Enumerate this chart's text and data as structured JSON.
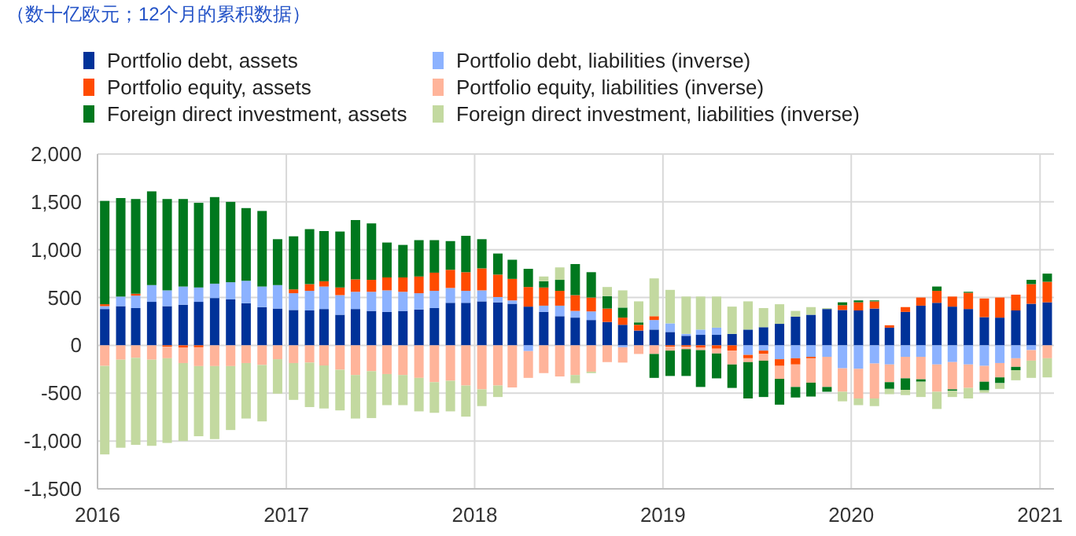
{
  "chart_data": {
    "type": "bar",
    "subtitle": "（数十亿欧元；12个月的累积数据）",
    "stacked": true,
    "grid": true,
    "legend": "top",
    "x": [
      "2016-01-15",
      "2016-02-15",
      "2016-03-15",
      "2016-04-15",
      "2016-05-15",
      "2016-06-15",
      "2016-07-15",
      "2016-08-15",
      "2016-09-15",
      "2016-10-15",
      "2016-11-15",
      "2016-12-15",
      "2017-01-15",
      "2017-02-15",
      "2017-03-15",
      "2017-04-15",
      "2017-05-15",
      "2017-06-15",
      "2017-07-15",
      "2017-08-15",
      "2017-09-15",
      "2017-10-15",
      "2017-11-15",
      "2017-12-15",
      "2018-01-15",
      "2018-02-15",
      "2018-03-15",
      "2018-04-15",
      "2018-05-15",
      "2018-06-15",
      "2018-07-15",
      "2018-08-15",
      "2018-09-15",
      "2018-10-15",
      "2018-11-15",
      "2018-12-15",
      "2019-01-15",
      "2019-02-15",
      "2019-03-15",
      "2019-04-15",
      "2019-05-15",
      "2019-06-15",
      "2019-07-15",
      "2019-08-15",
      "2019-09-15",
      "2019-10-15",
      "2019-11-15",
      "2019-12-15",
      "2020-01-15",
      "2020-02-15",
      "2020-03-15",
      "2020-04-15",
      "2020-05-15",
      "2020-06-15",
      "2020-07-15",
      "2020-08-15",
      "2020-09-15",
      "2020-10-15",
      "2020-11-15",
      "2020-12-15",
      "2021-01-15"
    ],
    "xlim": [
      "2016-01-01",
      "2021-01-28"
    ],
    "xticks": [
      "2016",
      "2017",
      "2018",
      "2019",
      "2020",
      "2021"
    ],
    "ylim": [
      -1500,
      2000
    ],
    "yticks": [
      {
        "value": -1500,
        "label": "-1,500"
      },
      {
        "value": -1000,
        "label": "-1,000"
      },
      -500,
      0,
      500,
      {
        "value": 1000,
        "label": "1,000"
      },
      {
        "value": 1500,
        "label": "1,500"
      },
      {
        "value": 2000,
        "label": "2,000"
      }
    ],
    "series": [
      {
        "name": "Portfolio debt, assets",
        "color": "#003299",
        "values": [
          380,
          410,
          390,
          455,
          410,
          425,
          455,
          495,
          480,
          440,
          400,
          385,
          370,
          365,
          380,
          320,
          380,
          360,
          350,
          360,
          375,
          390,
          445,
          445,
          460,
          450,
          435,
          405,
          350,
          305,
          290,
          265,
          245,
          215,
          155,
          165,
          140,
          100,
          110,
          110,
          120,
          165,
          190,
          225,
          300,
          320,
          380,
          370,
          365,
          385,
          185,
          350,
          415,
          445,
          405,
          380,
          295,
          290,
          365,
          435,
          450
        ]
      },
      {
        "name": "Portfolio debt, liabilities (inverse)",
        "color": "#8cb2ff",
        "values": [
          30,
          100,
          130,
          175,
          165,
          190,
          150,
          150,
          180,
          235,
          215,
          245,
          175,
          205,
          235,
          205,
          180,
          200,
          225,
          200,
          170,
          180,
          155,
          125,
          115,
          55,
          35,
          -60,
          65,
          110,
          70,
          90,
          null,
          -20,
          null,
          100,
          90,
          20,
          55,
          75,
          null,
          -100,
          -55,
          -145,
          -135,
          -120,
          -120,
          -240,
          -245,
          -190,
          -200,
          -120,
          -120,
          -200,
          -175,
          -200,
          -215,
          -185,
          -135,
          -50,
          null
        ]
      },
      {
        "name": "Portfolio equity, assets",
        "color": "#ff4b00",
        "values": [
          20,
          null,
          20,
          null,
          -15,
          -25,
          -20,
          null,
          null,
          null,
          null,
          null,
          40,
          70,
          55,
          80,
          130,
          125,
          135,
          150,
          175,
          190,
          190,
          195,
          230,
          235,
          225,
          205,
          190,
          155,
          165,
          145,
          140,
          75,
          60,
          40,
          -15,
          -15,
          -25,
          -35,
          -55,
          -35,
          -35,
          -70,
          -65,
          -15,
          null,
          50,
          85,
          75,
          25,
          50,
          85,
          125,
          105,
          170,
          195,
          210,
          165,
          205,
          215
        ]
      },
      {
        "name": "Portfolio equity, liabilities (inverse)",
        "color": "#ffb49a",
        "values": [
          -215,
          -150,
          -130,
          -150,
          -120,
          -160,
          -197,
          -217,
          -217,
          -185,
          -205,
          -145,
          -185,
          -180,
          -210,
          -255,
          -310,
          -270,
          -300,
          -310,
          -340,
          -385,
          -370,
          -420,
          -460,
          -420,
          -440,
          -280,
          -290,
          -325,
          -310,
          -275,
          -175,
          -160,
          -90,
          -90,
          -40,
          -25,
          -25,
          -50,
          -145,
          -40,
          -70,
          -135,
          -235,
          -255,
          -315,
          -245,
          -310,
          -365,
          -185,
          -225,
          -235,
          -285,
          -285,
          -245,
          -165,
          -150,
          -90,
          -110,
          -135
        ]
      },
      {
        "name": "Foreign direct investment, assets",
        "color": "#00781e",
        "values": [
          1080,
          1030,
          990,
          980,
          955,
          915,
          885,
          905,
          840,
          760,
          790,
          480,
          555,
          575,
          525,
          585,
          620,
          590,
          365,
          340,
          380,
          340,
          300,
          380,
          305,
          220,
          200,
          190,
          65,
          115,
          325,
          265,
          130,
          105,
          25,
          -250,
          -265,
          -280,
          -385,
          -260,
          -245,
          -380,
          -380,
          -270,
          -110,
          -145,
          -50,
          30,
          20,
          10,
          -70,
          -120,
          -25,
          45,
          -15,
          10,
          -90,
          -60,
          -35,
          45,
          85
        ]
      },
      {
        "name": "Foreign direct investment, liabilities (inverse)",
        "color": "#c3d9a0",
        "values": [
          -925,
          -920,
          -910,
          -900,
          -885,
          -815,
          -733,
          -763,
          -668,
          -580,
          -590,
          -360,
          -385,
          -465,
          -450,
          -425,
          -455,
          -490,
          -325,
          -315,
          -350,
          -320,
          -320,
          -325,
          -175,
          -120,
          null,
          null,
          50,
          130,
          -85,
          -15,
          95,
          180,
          220,
          395,
          350,
          390,
          345,
          325,
          285,
          295,
          200,
          205,
          60,
          80,
          10,
          -100,
          -70,
          -80,
          -55,
          -55,
          -160,
          -180,
          -65,
          -110,
          -25,
          -60,
          -105,
          -180,
          -200
        ]
      }
    ]
  }
}
